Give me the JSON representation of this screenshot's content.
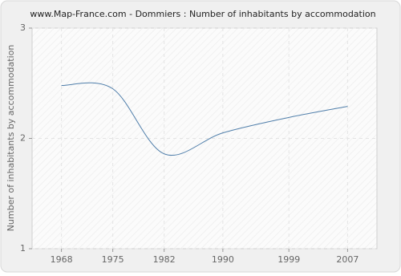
{
  "chart_data": {
    "type": "line",
    "title": "www.Map-France.com - Dommiers : Number of inhabitants by accommodation",
    "y_label": "Number of inhabitants by accommodation",
    "x": [
      1968,
      1975,
      1982,
      1990,
      1999,
      2007
    ],
    "series": [
      {
        "name": "Dommiers",
        "color": "#4f7eaa",
        "values": [
          2.48,
          2.45,
          1.86,
          2.05,
          2.19,
          2.29
        ]
      }
    ],
    "xlim": [
      1964,
      2011
    ],
    "xticks": [
      1968,
      1975,
      1982,
      1990,
      1999,
      2007
    ],
    "ylim": [
      1,
      3
    ],
    "yticks": [
      1,
      2,
      3
    ],
    "grid": true
  }
}
